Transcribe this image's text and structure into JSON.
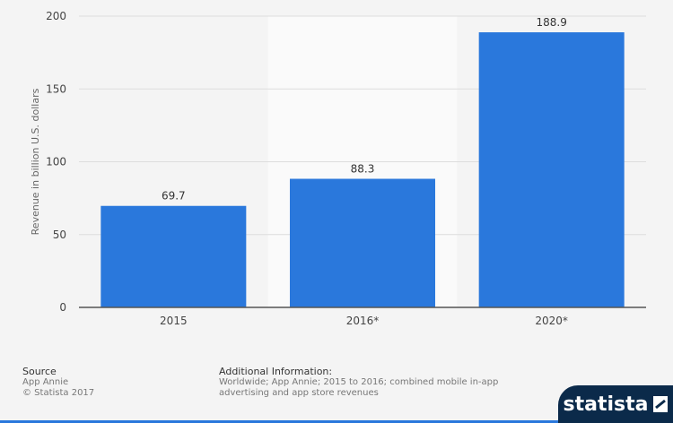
{
  "chart_data": {
    "type": "bar",
    "categories": [
      "2015",
      "2016*",
      "2020*"
    ],
    "values": [
      69.7,
      88.3,
      188.9
    ],
    "value_labels": [
      "69.7",
      "88.3",
      "188.9"
    ],
    "highlighted_category": "2016*",
    "title": "",
    "xlabel": "",
    "ylabel": "Revenue in billion U.S. dollars",
    "ylim": [
      0,
      200
    ],
    "yticks": [
      0,
      50,
      100,
      150,
      200
    ],
    "ytick_labels": [
      "0",
      "50",
      "100",
      "150",
      "200"
    ],
    "grid": true,
    "bar_color": "#2a78dc",
    "grid_color": "#dddddd",
    "highlight_color": "#fafafa"
  },
  "footer": {
    "source_heading": "Source",
    "source_lines": [
      "App Annie",
      "© Statista 2017"
    ],
    "info_heading": "Additional Information:",
    "info_lines": [
      "Worldwide; App Annie; 2015 to 2016; combined mobile in-app",
      "advertising and app store revenues"
    ]
  },
  "brand": {
    "name": "statista",
    "icon": "statista-logo-icon",
    "background_color": "#0b2a4a"
  }
}
